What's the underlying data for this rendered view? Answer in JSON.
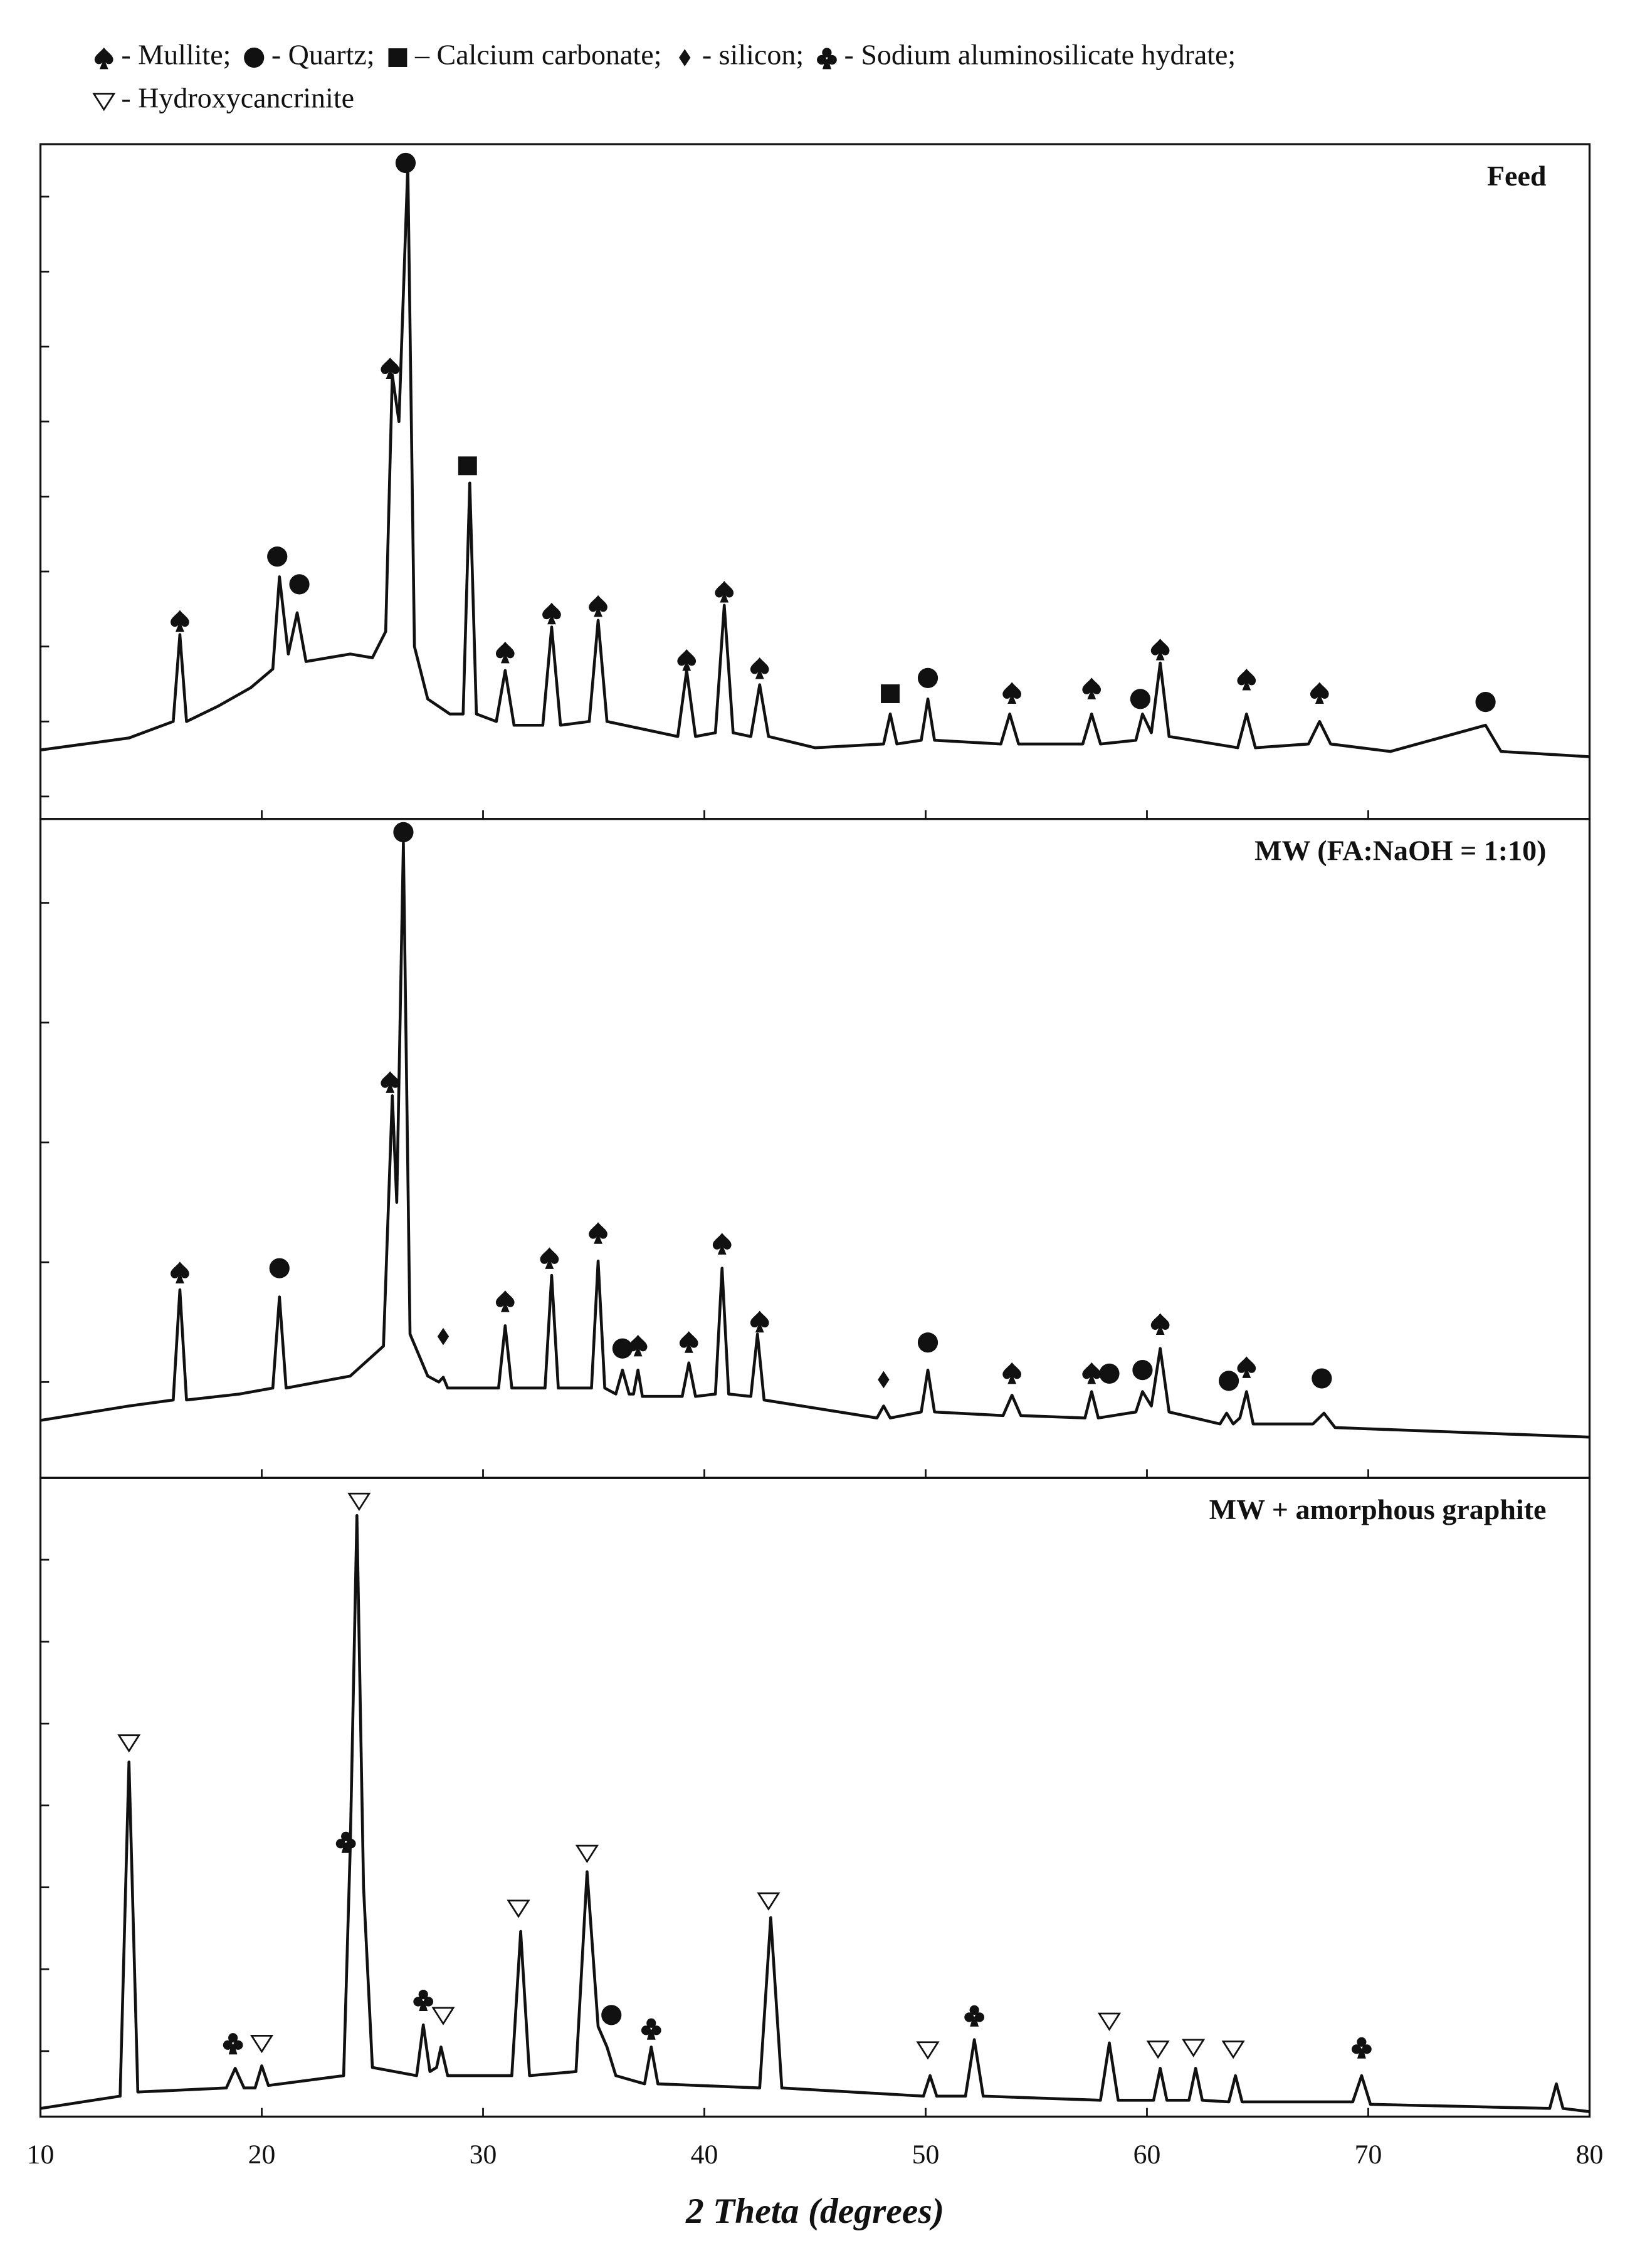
{
  "legend": [
    {
      "symbol": "spade",
      "label": "- Mullite;"
    },
    {
      "symbol": "circle",
      "label": "- Quartz;"
    },
    {
      "symbol": "square",
      "label": "– Calcium carbonate;"
    },
    {
      "symbol": "diamond",
      "label": "- silicon;"
    },
    {
      "symbol": "club",
      "label": "- Sodium aluminosilicate hydrate;"
    },
    {
      "symbol": "triangle-down",
      "label": "- Hydroxycancrinite"
    }
  ],
  "chart_data": [
    {
      "type": "line",
      "title": "Feed",
      "color": "#111111",
      "xlim": [
        10,
        80
      ],
      "xticks": [
        10,
        20,
        30,
        40,
        50,
        60,
        70,
        80
      ],
      "ylim": [
        -0.3,
        8.7
      ],
      "yticks": [
        0,
        1,
        2,
        3,
        4,
        5,
        6,
        7,
        8
      ],
      "x": [
        10,
        14,
        16.0,
        16.3,
        16.6,
        18,
        19.5,
        20.5,
        20.8,
        21.2,
        21.6,
        22.0,
        23,
        24,
        25,
        25.6,
        25.9,
        26.2,
        26.6,
        26.9,
        27.5,
        28.5,
        29.1,
        29.4,
        29.7,
        30.6,
        31.0,
        31.4,
        32.7,
        33.1,
        33.5,
        34.8,
        35.2,
        35.6,
        38.8,
        39.2,
        39.6,
        40.5,
        40.9,
        41.3,
        42.1,
        42.5,
        42.9,
        45,
        48.1,
        48.4,
        48.7,
        49.8,
        50.1,
        50.4,
        53.4,
        53.8,
        54.2,
        57.1,
        57.5,
        57.9,
        59.5,
        59.8,
        60.2,
        60.6,
        61.0,
        64.1,
        64.5,
        64.9,
        67.3,
        67.8,
        68.3,
        71,
        75.3,
        76,
        80
      ],
      "values": [
        0.62,
        0.78,
        1.0,
        2.16,
        1.0,
        1.2,
        1.45,
        1.7,
        2.93,
        1.9,
        2.45,
        1.8,
        1.85,
        1.9,
        1.85,
        2.2,
        5.62,
        5.0,
        8.41,
        2.0,
        1.3,
        1.1,
        1.1,
        4.18,
        1.1,
        1.0,
        1.68,
        0.95,
        0.95,
        2.26,
        0.95,
        1.0,
        2.35,
        1.0,
        0.8,
        1.68,
        0.8,
        0.85,
        2.55,
        0.85,
        0.8,
        1.49,
        0.8,
        0.65,
        0.7,
        1.1,
        0.7,
        0.75,
        1.3,
        0.75,
        0.7,
        1.1,
        0.7,
        0.7,
        1.1,
        0.7,
        0.75,
        1.1,
        0.85,
        1.78,
        0.8,
        0.65,
        1.1,
        0.65,
        0.7,
        1.0,
        0.7,
        0.6,
        0.95,
        0.6,
        0.53
      ],
      "markers": [
        {
          "x": 16.3,
          "y": 2.35,
          "symbol": "spade"
        },
        {
          "x": 20.7,
          "y": 3.2,
          "symbol": "circle"
        },
        {
          "x": 21.7,
          "y": 2.83,
          "symbol": "circle"
        },
        {
          "x": 25.8,
          "y": 5.72,
          "symbol": "spade"
        },
        {
          "x": 26.5,
          "y": 8.45,
          "symbol": "circle"
        },
        {
          "x": 29.3,
          "y": 4.41,
          "symbol": "square"
        },
        {
          "x": 31,
          "y": 1.93,
          "symbol": "spade"
        },
        {
          "x": 33.1,
          "y": 2.45,
          "symbol": "spade"
        },
        {
          "x": 35.2,
          "y": 2.55,
          "symbol": "spade"
        },
        {
          "x": 39.2,
          "y": 1.83,
          "symbol": "spade"
        },
        {
          "x": 40.9,
          "y": 2.74,
          "symbol": "spade"
        },
        {
          "x": 42.5,
          "y": 1.72,
          "symbol": "spade"
        },
        {
          "x": 48.4,
          "y": 1.37,
          "symbol": "square"
        },
        {
          "x": 50.1,
          "y": 1.58,
          "symbol": "circle"
        },
        {
          "x": 53.9,
          "y": 1.39,
          "symbol": "spade"
        },
        {
          "x": 57.5,
          "y": 1.45,
          "symbol": "spade"
        },
        {
          "x": 59.7,
          "y": 1.3,
          "symbol": "circle"
        },
        {
          "x": 60.6,
          "y": 1.97,
          "symbol": "spade"
        },
        {
          "x": 64.5,
          "y": 1.57,
          "symbol": "spade"
        },
        {
          "x": 67.8,
          "y": 1.39,
          "symbol": "spade"
        },
        {
          "x": 75.3,
          "y": 1.26,
          "symbol": "circle"
        }
      ]
    },
    {
      "type": "line",
      "title": "MW (FA:NaOH = 1:10)",
      "color": "#111111",
      "xlim": [
        10,
        80
      ],
      "xticks": [
        10,
        20,
        30,
        40,
        50,
        60,
        70,
        80
      ],
      "ylim": [
        -0.8,
        4.7
      ],
      "yticks": [
        0,
        1,
        2,
        3,
        4
      ],
      "x": [
        10,
        14,
        16.0,
        16.3,
        16.6,
        19,
        20.5,
        20.8,
        21.1,
        24,
        25.5,
        25.9,
        26.1,
        26.4,
        26.7,
        27.5,
        28.0,
        28.2,
        28.4,
        30.7,
        31.0,
        31.3,
        32.8,
        33.1,
        33.4,
        34.9,
        35.2,
        35.5,
        36.0,
        36.3,
        36.6,
        36.8,
        37.0,
        37.2,
        39.0,
        39.3,
        39.6,
        40.5,
        40.8,
        41.1,
        42.1,
        42.4,
        42.7,
        47.8,
        48.1,
        48.4,
        49.8,
        50.1,
        50.4,
        53.5,
        53.9,
        54.3,
        57.2,
        57.5,
        57.8,
        59.5,
        59.8,
        60.2,
        60.6,
        61.0,
        63.3,
        63.6,
        63.9,
        64.2,
        64.5,
        64.8,
        67.5,
        68.0,
        68.5,
        80
      ],
      "values": [
        -0.32,
        -0.2,
        -0.15,
        0.77,
        -0.15,
        -0.1,
        -0.05,
        0.71,
        -0.05,
        0.05,
        0.3,
        2.39,
        1.5,
        4.5,
        0.4,
        0.05,
        0.0,
        0.04,
        -0.05,
        -0.05,
        0.47,
        -0.05,
        -0.05,
        0.89,
        -0.05,
        -0.05,
        1.01,
        -0.05,
        -0.1,
        0.1,
        -0.1,
        -0.1,
        0.1,
        -0.12,
        -0.12,
        0.16,
        -0.12,
        -0.1,
        0.95,
        -0.1,
        -0.12,
        0.4,
        -0.15,
        -0.3,
        -0.2,
        -0.3,
        -0.25,
        0.1,
        -0.25,
        -0.28,
        -0.11,
        -0.28,
        -0.3,
        -0.08,
        -0.3,
        -0.25,
        -0.08,
        -0.2,
        0.28,
        -0.25,
        -0.35,
        -0.26,
        -0.35,
        -0.3,
        -0.08,
        -0.35,
        -0.35,
        -0.26,
        -0.38,
        -0.46
      ],
      "markers": [
        {
          "x": 16.3,
          "y": 0.92,
          "symbol": "spade"
        },
        {
          "x": 20.8,
          "y": 0.95,
          "symbol": "circle"
        },
        {
          "x": 25.8,
          "y": 2.51,
          "symbol": "spade"
        },
        {
          "x": 26.4,
          "y": 4.59,
          "symbol": "circle"
        },
        {
          "x": 28.2,
          "y": 0.38,
          "symbol": "diamond"
        },
        {
          "x": 31,
          "y": 0.68,
          "symbol": "spade"
        },
        {
          "x": 33,
          "y": 1.04,
          "symbol": "spade"
        },
        {
          "x": 35.2,
          "y": 1.25,
          "symbol": "spade"
        },
        {
          "x": 36.3,
          "y": 0.28,
          "symbol": "circle"
        },
        {
          "x": 37,
          "y": 0.31,
          "symbol": "spade"
        },
        {
          "x": 39.3,
          "y": 0.34,
          "symbol": "spade"
        },
        {
          "x": 40.8,
          "y": 1.16,
          "symbol": "spade"
        },
        {
          "x": 42.5,
          "y": 0.51,
          "symbol": "spade"
        },
        {
          "x": 48.1,
          "y": 0.02,
          "symbol": "diamond"
        },
        {
          "x": 50.1,
          "y": 0.33,
          "symbol": "circle"
        },
        {
          "x": 53.9,
          "y": 0.08,
          "symbol": "spade"
        },
        {
          "x": 57.5,
          "y": 0.08,
          "symbol": "spade"
        },
        {
          "x": 58.3,
          "y": 0.07,
          "symbol": "circle"
        },
        {
          "x": 59.8,
          "y": 0.1,
          "symbol": "circle"
        },
        {
          "x": 60.6,
          "y": 0.49,
          "symbol": "spade"
        },
        {
          "x": 63.7,
          "y": 0.01,
          "symbol": "circle"
        },
        {
          "x": 64.5,
          "y": 0.13,
          "symbol": "spade"
        },
        {
          "x": 67.9,
          "y": 0.03,
          "symbol": "circle"
        }
      ]
    },
    {
      "type": "line",
      "title": "MW + amorphous graphite",
      "color": "#111111",
      "xlabel": "2 Theta (degrees)",
      "xlim": [
        10,
        80
      ],
      "xticks": [
        10,
        20,
        30,
        40,
        50,
        60,
        70,
        80
      ],
      "ylim": [
        -0.8,
        7.0
      ],
      "yticks": [
        0,
        1,
        2,
        3,
        4,
        5,
        6
      ],
      "x": [
        10,
        13.6,
        14.0,
        14.4,
        18.4,
        18.8,
        19.2,
        19.7,
        20.0,
        20.3,
        23.7,
        24.0,
        24.3,
        24.6,
        25.0,
        27.0,
        27.3,
        27.6,
        27.9,
        28.1,
        28.4,
        31.3,
        31.7,
        32.1,
        34.2,
        34.7,
        35.2,
        35.6,
        36.0,
        37.3,
        37.6,
        37.9,
        42.5,
        43.0,
        43.5,
        49.9,
        50.2,
        50.5,
        51.8,
        52.2,
        52.6,
        57.9,
        58.3,
        58.7,
        60.3,
        60.6,
        60.9,
        61.9,
        62.2,
        62.5,
        63.7,
        64.0,
        64.3,
        69.3,
        69.7,
        70.1,
        78.2,
        78.5,
        78.8,
        80
      ],
      "values": [
        -0.7,
        -0.55,
        3.53,
        -0.5,
        -0.45,
        -0.21,
        -0.45,
        -0.45,
        -0.18,
        -0.42,
        -0.3,
        2.5,
        6.54,
        2.0,
        -0.2,
        -0.3,
        0.32,
        -0.25,
        -0.2,
        0.05,
        -0.3,
        -0.3,
        1.46,
        -0.3,
        -0.25,
        2.19,
        0.3,
        0.05,
        -0.3,
        -0.4,
        0.05,
        -0.4,
        -0.45,
        1.63,
        -0.45,
        -0.55,
        -0.3,
        -0.55,
        -0.55,
        0.14,
        -0.55,
        -0.6,
        0.1,
        -0.6,
        -0.6,
        -0.21,
        -0.6,
        -0.6,
        -0.21,
        -0.6,
        -0.62,
        -0.3,
        -0.62,
        -0.62,
        -0.3,
        -0.65,
        -0.7,
        -0.4,
        -0.7,
        -0.74
      ],
      "markers": [
        {
          "x": 14,
          "y": 3.77,
          "symbol": "triangle-down"
        },
        {
          "x": 18.7,
          "y": 0.1,
          "symbol": "club"
        },
        {
          "x": 20,
          "y": 0.1,
          "symbol": "triangle-down"
        },
        {
          "x": 23.8,
          "y": 2.56,
          "symbol": "club"
        },
        {
          "x": 24.4,
          "y": 6.72,
          "symbol": "triangle-down"
        },
        {
          "x": 27.3,
          "y": 0.63,
          "symbol": "club"
        },
        {
          "x": 28.2,
          "y": 0.44,
          "symbol": "triangle-down"
        },
        {
          "x": 31.6,
          "y": 1.75,
          "symbol": "triangle-down"
        },
        {
          "x": 34.7,
          "y": 2.42,
          "symbol": "triangle-down"
        },
        {
          "x": 35.8,
          "y": 0.44,
          "symbol": "circle"
        },
        {
          "x": 37.6,
          "y": 0.28,
          "symbol": "club"
        },
        {
          "x": 42.9,
          "y": 1.84,
          "symbol": "triangle-down"
        },
        {
          "x": 50.1,
          "y": 0.02,
          "symbol": "triangle-down"
        },
        {
          "x": 52.2,
          "y": 0.44,
          "symbol": "club"
        },
        {
          "x": 58.3,
          "y": 0.37,
          "symbol": "triangle-down"
        },
        {
          "x": 60.5,
          "y": 0.03,
          "symbol": "triangle-down"
        },
        {
          "x": 62.1,
          "y": 0.05,
          "symbol": "triangle-down"
        },
        {
          "x": 63.9,
          "y": 0.03,
          "symbol": "triangle-down"
        },
        {
          "x": 69.7,
          "y": 0.05,
          "symbol": "club"
        }
      ]
    }
  ]
}
